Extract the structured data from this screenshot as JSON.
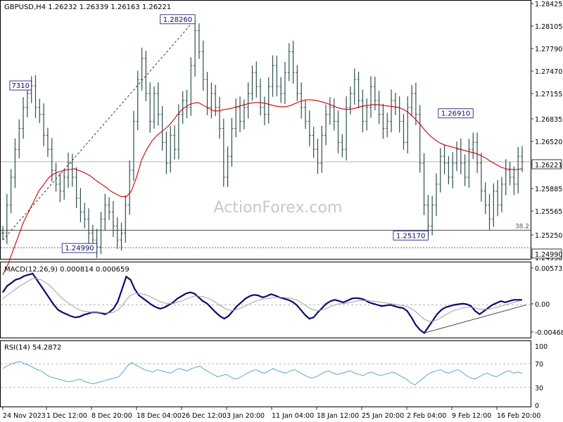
{
  "watermark": "ActionForex.com",
  "colors": {
    "candle": "#2f4f4f",
    "ma": "#cc0000",
    "macd": "#0a0a6e",
    "signal": "#a0a0a0",
    "rsi": "#5aa5cc",
    "accent_label": "#0a0a6e",
    "grid": "#c8c8c8"
  },
  "chart_data": [
    {
      "type": "candlestick",
      "title": "GBPUSD,H4 1.26232 1.26339 1.26163 1.26221",
      "symbol": "GBPUSD",
      "timeframe": "H4",
      "ohlc_last": [
        1.26232,
        1.26339,
        1.26163,
        1.26221
      ],
      "ylim": [
        1.2485,
        1.285
      ],
      "y_ticks": [
        "1.28425",
        "1.28105",
        "1.27790",
        "1.27470",
        "1.27155",
        "1.26835",
        "1.26520",
        "1.26221",
        "1.25885",
        "1.25565",
        "1.25250",
        "1.24930"
      ],
      "x_ticks": [
        "24 Nov 2023",
        "1 Dec 12:00",
        "8 Dec 20:00",
        "18 Dec 04:00",
        "26 Dec 12:00",
        "3 Jan 20:00",
        "11 Jan 04:00",
        "18 Jan 12:00",
        "25 Jan 20:00",
        "2 Feb 04:00",
        "9 Feb 12:00",
        "16 Feb 20:00"
      ],
      "last_price_label": "1.26221",
      "support_price_label": "1.24990",
      "fib_label": "38.2",
      "fib_level": 1.2524,
      "support_level": 1.2499,
      "annotations": [
        {
          "text": "1.28260",
          "price": 1.2826,
          "index": 47
        },
        {
          "text": "7310",
          "price": 1.2731,
          "index": 7
        },
        {
          "text": "1.24990",
          "price": 1.2499,
          "index": 23
        },
        {
          "text": "1.25170",
          "price": 1.2517,
          "index": 104
        },
        {
          "text": "1.26910",
          "price": 1.2691,
          "index": 115
        }
      ],
      "trendline": {
        "from": {
          "index": 0,
          "price": 1.251
        },
        "to": {
          "index": 47,
          "price": 1.2826
        }
      },
      "close_series": [
        1.252,
        1.256,
        1.26,
        1.264,
        1.267,
        1.27,
        1.272,
        1.2731,
        1.27,
        1.269,
        1.266,
        1.264,
        1.261,
        1.259,
        1.258,
        1.26,
        1.262,
        1.26,
        1.257,
        1.255,
        1.254,
        1.252,
        1.251,
        1.25,
        1.254,
        1.256,
        1.255,
        1.253,
        1.251,
        1.252,
        1.256,
        1.261,
        1.268,
        1.274,
        1.277,
        1.272,
        1.268,
        1.272,
        1.269,
        1.265,
        1.262,
        1.266,
        1.264,
        1.269,
        1.271,
        1.27,
        1.276,
        1.281,
        1.278,
        1.274,
        1.27,
        1.272,
        1.27,
        1.267,
        1.26,
        1.263,
        1.267,
        1.27,
        1.268,
        1.27,
        1.272,
        1.275,
        1.273,
        1.27,
        1.269,
        1.273,
        1.276,
        1.273,
        1.272,
        1.275,
        1.278,
        1.275,
        1.272,
        1.27,
        1.268,
        1.266,
        1.264,
        1.262,
        1.266,
        1.269,
        1.27,
        1.268,
        1.265,
        1.264,
        1.27,
        1.272,
        1.274,
        1.271,
        1.268,
        1.27,
        1.273,
        1.271,
        1.269,
        1.267,
        1.268,
        1.271,
        1.27,
        1.268,
        1.265,
        1.27,
        1.272,
        1.269,
        1.262,
        1.256,
        1.253,
        1.256,
        1.259,
        1.263,
        1.262,
        1.26,
        1.262,
        1.264,
        1.262,
        1.26,
        1.264,
        1.265,
        1.262,
        1.258,
        1.256,
        1.254,
        1.258,
        1.256,
        1.259,
        1.261,
        1.26,
        1.259,
        1.263,
        1.2622
      ],
      "ma_series": [
        1.246,
        1.2475,
        1.2495,
        1.2515,
        1.2535,
        1.255,
        1.2565,
        1.258,
        1.259,
        1.26,
        1.2605,
        1.2608,
        1.261,
        1.2611,
        1.2612,
        1.2609,
        1.2606,
        1.2602,
        1.2596,
        1.2591,
        1.2586,
        1.258,
        1.2576,
        1.2572,
        1.2572,
        1.258,
        1.26,
        1.2625,
        1.264,
        1.2652,
        1.266,
        1.2666,
        1.2672,
        1.268,
        1.269,
        1.2698,
        1.2703,
        1.2706,
        1.2707,
        1.2703,
        1.2699,
        1.2695,
        1.2695,
        1.2697,
        1.2698,
        1.27,
        1.2702,
        1.2704,
        1.2706,
        1.2707,
        1.2707,
        1.2706,
        1.2704,
        1.2702,
        1.2701,
        1.2701,
        1.2703,
        1.2706,
        1.2709,
        1.2711,
        1.2711,
        1.271,
        1.2708,
        1.2706,
        1.2703,
        1.27,
        1.2698,
        1.2697,
        1.2698,
        1.27,
        1.2702,
        1.2703,
        1.2704,
        1.2704,
        1.2703,
        1.2702,
        1.2701,
        1.27,
        1.2697,
        1.2692,
        1.2685,
        1.2677,
        1.2668,
        1.266,
        1.2654,
        1.2649,
        1.2646,
        1.2644,
        1.2642,
        1.264,
        1.2638,
        1.2636,
        1.2634,
        1.2631,
        1.2627,
        1.2622,
        1.2618,
        1.2614,
        1.2612,
        1.2611,
        1.2611,
        1.2612
      ],
      "ma_start_index": 0
    },
    {
      "type": "line",
      "title": "MACD(12,26,9) 0.000814 0.000659",
      "ylim": [
        -0.005,
        0.006
      ],
      "y_ticks": [
        "0.00573",
        "0.00",
        "-0.004685"
      ],
      "current_label": "0.00",
      "series": [
        {
          "name": "MACD",
          "values": [
            0.002,
            0.003,
            0.0035,
            0.004,
            0.0042,
            0.0046,
            0.0048,
            0.005,
            0.004,
            0.003,
            0.002,
            0.001,
            0.0,
            -0.0008,
            -0.0012,
            -0.0015,
            -0.0018,
            -0.002,
            -0.0019,
            -0.0016,
            -0.0014,
            -0.0012,
            -0.0012,
            -0.0013,
            -0.0015,
            -0.0012,
            -0.0006,
            0.0005,
            0.0025,
            0.0045,
            0.004,
            0.0025,
            0.0015,
            0.001,
            0.0005,
            0.0,
            -0.0004,
            -0.0006,
            -0.0004,
            0.0,
            0.0004,
            0.001,
            0.0014,
            0.0018,
            0.002,
            0.0018,
            0.0012,
            0.0006,
            0.0002,
            -0.0005,
            -0.0012,
            -0.0018,
            -0.0022,
            -0.0018,
            -0.001,
            -0.0002,
            0.0004,
            0.001,
            0.0014,
            0.0016,
            0.0015,
            0.0012,
            0.0014,
            0.0017,
            0.0015,
            0.0012,
            0.001,
            0.0008,
            0.0005,
            0.0,
            -0.0008,
            -0.0016,
            -0.0022,
            -0.002,
            -0.0012,
            -0.0005,
            0.0002,
            0.0006,
            0.0008,
            0.0006,
            0.0004,
            0.0007,
            0.001,
            0.0011,
            0.001,
            0.0008,
            0.0004,
            0.0002,
            0.0,
            -0.0002,
            -0.0001,
            0.0,
            -0.0002,
            -0.0004,
            -0.0005,
            -0.001,
            -0.002,
            -0.0032,
            -0.004,
            -0.0045,
            -0.0035,
            -0.0025,
            -0.0015,
            -0.0008,
            -0.0004,
            -0.0002,
            0.0,
            0.0001,
            0.0002,
            0.0001,
            -0.0002,
            -0.001,
            -0.0015,
            -0.001,
            -0.0005,
            0.0,
            0.0003,
            0.0006,
            0.0004,
            0.0006,
            0.0008,
            0.0008,
            0.0008
          ]
        },
        {
          "name": "Signal",
          "values": [
            0.001,
            0.0015,
            0.002,
            0.0025,
            0.003,
            0.0034,
            0.0038,
            0.0042,
            0.0042,
            0.004,
            0.0036,
            0.0031,
            0.0024,
            0.0017,
            0.001,
            0.0005,
            0.0,
            -0.0004,
            -0.0008,
            -0.001,
            -0.0011,
            -0.0012,
            -0.0012,
            -0.0012,
            -0.0013,
            -0.0013,
            -0.0012,
            -0.0008,
            -0.0002,
            0.0008,
            0.0015,
            0.0018,
            0.0018,
            0.0017,
            0.0015,
            0.0012,
            0.0008,
            0.0005,
            0.0003,
            0.0002,
            0.0002,
            0.0004,
            0.0006,
            0.0009,
            0.0012,
            0.0014,
            0.0014,
            0.0013,
            0.0011,
            0.0008,
            0.0004,
            -0.0001,
            -0.0005,
            -0.0008,
            -0.0009,
            -0.0007,
            -0.0005,
            -0.0002,
            0.0002,
            0.0005,
            0.0007,
            0.0009,
            0.001,
            0.0011,
            0.0012,
            0.0012,
            0.0012,
            0.0011,
            0.001,
            0.0008,
            0.0004,
            0.0,
            -0.0005,
            -0.0008,
            -0.0009,
            -0.0008,
            -0.0006,
            -0.0003,
            0.0,
            0.0002,
            0.0002,
            0.0003,
            0.0004,
            0.0006,
            0.0007,
            0.0007,
            0.0007,
            0.0006,
            0.0005,
            0.0004,
            0.0003,
            0.0002,
            0.0001,
            0.0,
            -0.0001,
            -0.0003,
            -0.0006,
            -0.0011,
            -0.0017,
            -0.0023,
            -0.0026,
            -0.0026,
            -0.0024,
            -0.002,
            -0.0016,
            -0.0012,
            -0.0009,
            -0.0007,
            -0.0005,
            -0.0004,
            -0.0004,
            -0.0005,
            -0.0007,
            -0.0007,
            -0.0007,
            -0.0006,
            -0.0004,
            -0.0002,
            0.0,
            0.0002,
            0.0004,
            0.0006,
            0.0007
          ]
        }
      ]
    },
    {
      "type": "line",
      "title": "RSI(14) 54.2872",
      "ylim": [
        0,
        100
      ],
      "y_ticks": [
        "100",
        "70",
        "30",
        "0"
      ],
      "levels": [
        70,
        30
      ],
      "series": [
        {
          "name": "RSI",
          "values": [
            62,
            66,
            70,
            72,
            74,
            70,
            68,
            64,
            60,
            58,
            52,
            48,
            46,
            44,
            42,
            40,
            40,
            42,
            44,
            40,
            38,
            36,
            38,
            40,
            42,
            44,
            46,
            48,
            56,
            66,
            72,
            68,
            64,
            60,
            58,
            56,
            60,
            58,
            56,
            54,
            58,
            62,
            60,
            58,
            62,
            64,
            66,
            60,
            56,
            52,
            48,
            50,
            52,
            48,
            44,
            46,
            50,
            54,
            58,
            60,
            56,
            54,
            58,
            62,
            58,
            56,
            54,
            58,
            60,
            56,
            52,
            48,
            46,
            48,
            52,
            56,
            58,
            54,
            52,
            54,
            56,
            58,
            54,
            52,
            50,
            54,
            56,
            52,
            50,
            52,
            54,
            56,
            52,
            48,
            44,
            38,
            34,
            40,
            46,
            52,
            56,
            58,
            60,
            56,
            54,
            58,
            60,
            56,
            50,
            46,
            44,
            48,
            52,
            54,
            50,
            48,
            52,
            56,
            58,
            54,
            56,
            54
          ]
        }
      ]
    }
  ]
}
